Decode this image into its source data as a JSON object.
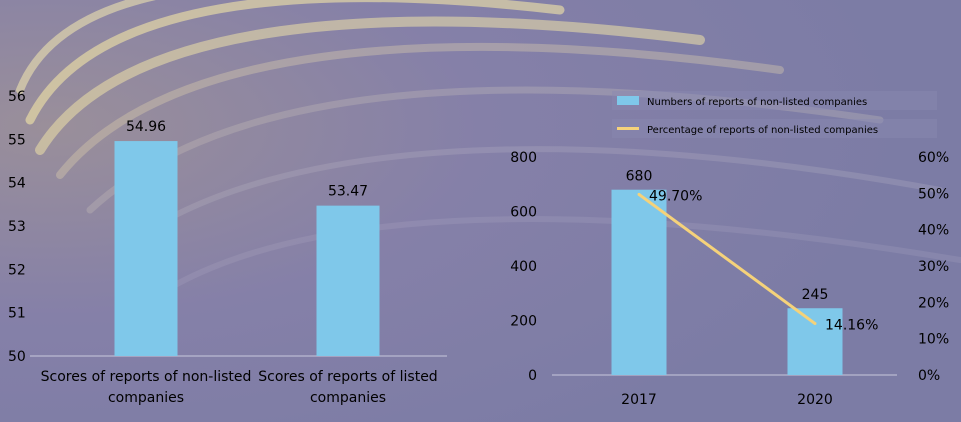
{
  "colors": {
    "bar": "#7fc8ea",
    "line": "#f5d27a",
    "axis": "#c8c8dc",
    "background": "#7f7fa6"
  },
  "chart_data": [
    {
      "type": "bar",
      "categories": [
        "Scores of reports of non-listed companies",
        "Scores of reports of listed companies"
      ],
      "category_lines": [
        [
          "Scores of reports of non-listed",
          "companies"
        ],
        [
          "Scores of reports of listed",
          "companies"
        ]
      ],
      "values": [
        54.96,
        53.47
      ],
      "value_labels": [
        "54.96",
        "53.47"
      ],
      "ylim": [
        50,
        56
      ],
      "y_ticks": [
        "50",
        "51",
        "52",
        "53",
        "54",
        "55",
        "56"
      ],
      "grid": false
    },
    {
      "type": "bar",
      "categories": [
        "2017",
        "2020"
      ],
      "series": [
        {
          "name": "Numbers of reports of non-listed companies",
          "type": "bar",
          "axis": "left",
          "values": [
            680,
            245
          ],
          "value_labels": [
            "680",
            "245"
          ]
        },
        {
          "name": "Percentage of reports of non-listed companies",
          "type": "line",
          "axis": "right",
          "values": [
            49.7,
            14.16
          ],
          "value_labels": [
            "49.70%",
            "14.16%"
          ]
        }
      ],
      "y_left_lim": [
        0,
        800
      ],
      "y_left_ticks": [
        "0",
        "200",
        "400",
        "600",
        "800"
      ],
      "y_right_lim": [
        0,
        60
      ],
      "y_right_ticks": [
        "0%",
        "10%",
        "20%",
        "30%",
        "40%",
        "50%",
        "60%"
      ],
      "legend_position": "top-right",
      "grid": false
    }
  ]
}
